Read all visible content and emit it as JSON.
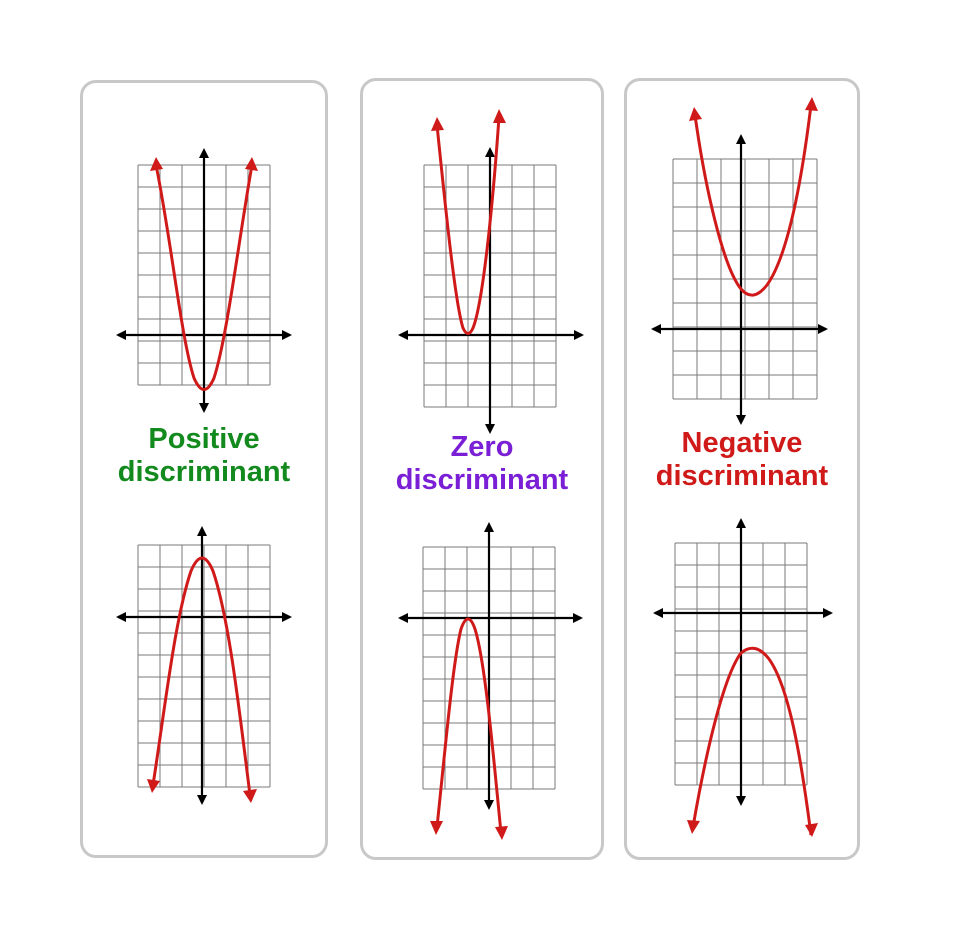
{
  "panels": [
    {
      "id": "positive",
      "caption": {
        "line1": "Positive",
        "line2": "discriminant",
        "color": "#138a1e"
      },
      "graphs": [
        {
          "opens": "up",
          "vertex": [
            0,
            -2.5
          ]
        },
        {
          "opens": "down",
          "vertex": [
            0,
            2.5
          ]
        }
      ]
    },
    {
      "id": "zero",
      "caption": {
        "line1": "Zero",
        "line2": "discriminant",
        "color": "#7a1fd6"
      },
      "graphs": [
        {
          "opens": "up",
          "vertex": [
            -1,
            0
          ]
        },
        {
          "opens": "down",
          "vertex": [
            -1,
            0
          ]
        }
      ]
    },
    {
      "id": "negative",
      "caption": {
        "line1": "Negative",
        "line2": "discriminant",
        "color": "#d01a1a"
      },
      "graphs": [
        {
          "opens": "up",
          "vertex": [
            1,
            1.5
          ]
        },
        {
          "opens": "down",
          "vertex": [
            1,
            -1.5
          ]
        }
      ]
    }
  ],
  "colors": {
    "curve": "#d01a1a",
    "axis": "#000000",
    "grid": "#7a7a7a",
    "border": "#c8c8c8"
  }
}
